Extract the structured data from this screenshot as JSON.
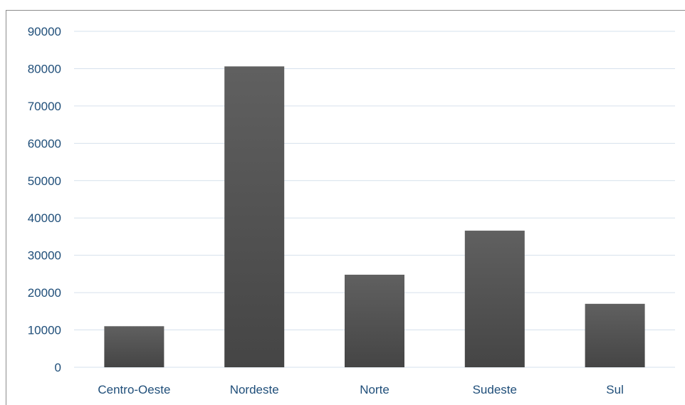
{
  "chart_data": {
    "type": "bar",
    "title": "",
    "xlabel": "",
    "ylabel": "",
    "categories": [
      "Centro-Oeste",
      "Nordeste",
      "Norte",
      "Sudeste",
      "Sul"
    ],
    "values": [
      11000,
      80600,
      24800,
      36600,
      17000
    ],
    "ylim": [
      0,
      90000
    ],
    "yticks": [
      "0",
      "10000",
      "20000",
      "30000",
      "40000",
      "50000",
      "60000",
      "70000",
      "80000",
      "90000"
    ],
    "grid": true,
    "legend": "none",
    "colors": {
      "bar_top": "#606060",
      "bar_bottom": "#454545",
      "tick_text": "#1f4e79",
      "gridline": "#d6e1ec"
    }
  }
}
